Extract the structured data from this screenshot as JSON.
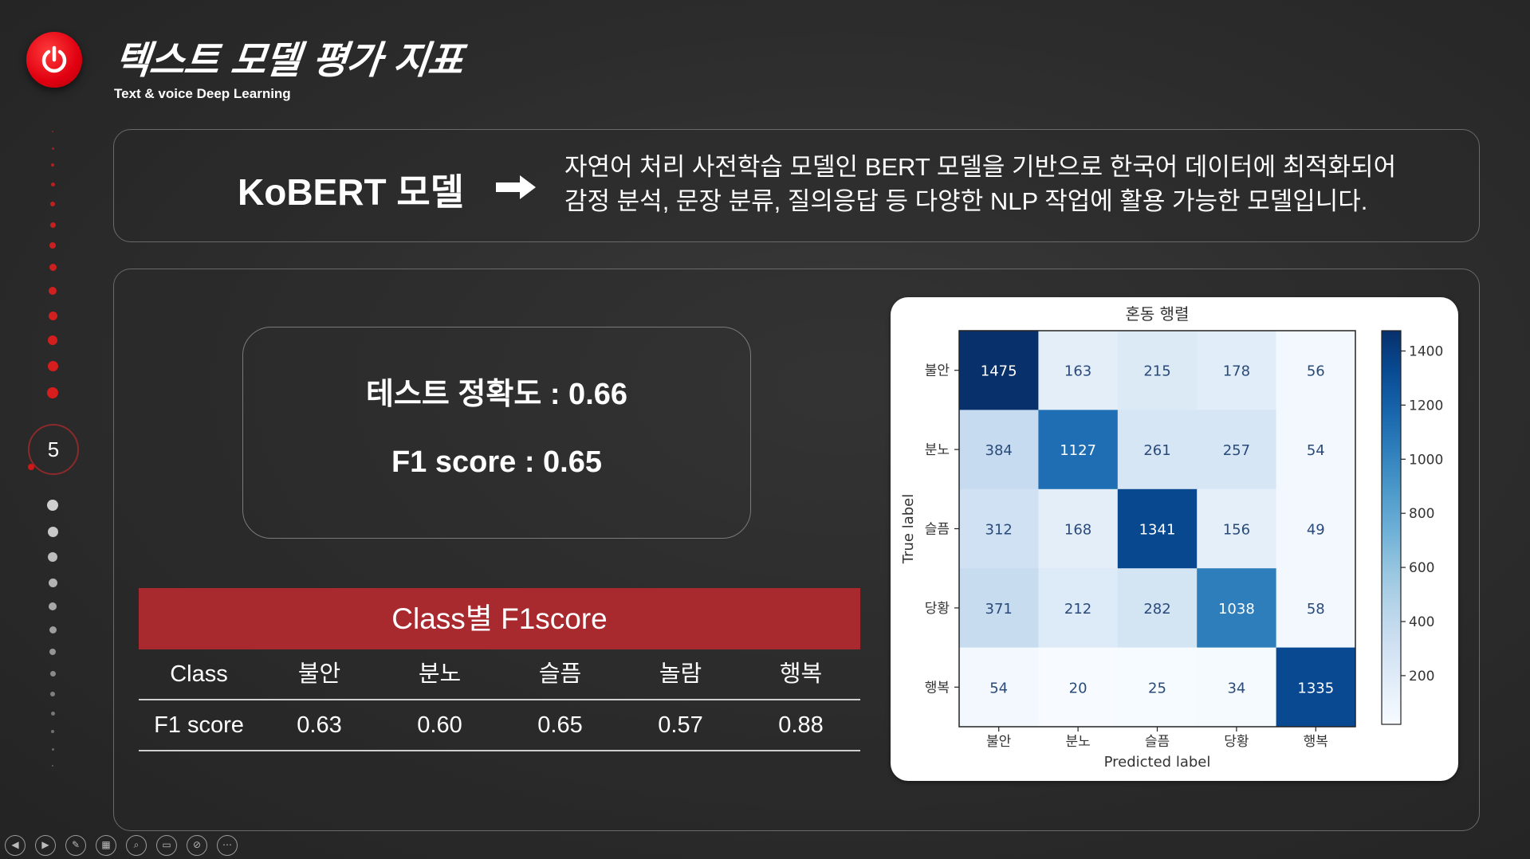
{
  "header": {
    "title": "텍스트 모델 평가 지표",
    "subtitle": "Text & voice Deep Learning",
    "page_number": "5"
  },
  "model_intro": {
    "name": "KoBERT 모델",
    "description_line1": "자연어 처리 사전학습 모델인 BERT 모델을 기반으로  한국어 데이터에 최적화되어",
    "description_line2": "감정 분석, 문장 분류, 질의응답 등 다양한 NLP 작업에 활용 가능한 모델입니다."
  },
  "metrics": {
    "accuracy": "테스트 정확도 : 0.66",
    "f1": "F1 score : 0.65"
  },
  "f1_table": {
    "title": "Class별 F1score",
    "headers": [
      "Class",
      "불안",
      "분노",
      "슬픔",
      "놀람",
      "행복"
    ],
    "row": [
      "F1 score",
      "0.63",
      "0.60",
      "0.65",
      "0.57",
      "0.88"
    ]
  },
  "chart_data": {
    "type": "heatmap",
    "title": "혼동 행렬",
    "xlabel": "Predicted label",
    "ylabel": "True label",
    "x_categories": [
      "불안",
      "분노",
      "슬픔",
      "당황",
      "행복"
    ],
    "y_categories": [
      "불안",
      "분노",
      "슬픔",
      "당황",
      "행복"
    ],
    "values": [
      [
        1475,
        163,
        215,
        178,
        56
      ],
      [
        384,
        1127,
        261,
        257,
        54
      ],
      [
        312,
        168,
        1341,
        156,
        49
      ],
      [
        371,
        212,
        282,
        1038,
        58
      ],
      [
        54,
        20,
        25,
        34,
        1335
      ]
    ],
    "colorbar_ticks": [
      200,
      400,
      600,
      800,
      1000,
      1200,
      1400
    ],
    "colormap": "Blues",
    "vmin": 20,
    "vmax": 1475
  },
  "toolbar": {
    "icons": [
      "prev-icon",
      "next-icon",
      "pen-icon",
      "slides-icon",
      "zoom-icon",
      "subtitle-icon",
      "camera-off-icon",
      "more-icon"
    ]
  },
  "colors": {
    "accent_red": "#a82a2e",
    "power_red": "#e00010"
  }
}
